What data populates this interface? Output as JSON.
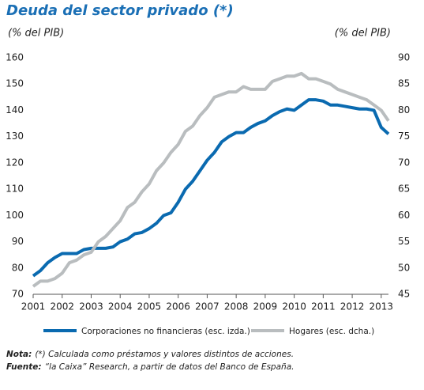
{
  "chart_data": {
    "type": "line",
    "title": "Deuda del sector privado (*)",
    "y_label": "(% del PIB)",
    "y2_label": "(% del PIB)",
    "x": [
      2001,
      2001.25,
      2001.5,
      2001.75,
      2002,
      2002.25,
      2002.5,
      2002.75,
      2003,
      2003.25,
      2003.5,
      2003.75,
      2004,
      2004.25,
      2004.5,
      2004.75,
      2005,
      2005.25,
      2005.5,
      2005.75,
      2006,
      2006.25,
      2006.5,
      2006.75,
      2007,
      2007.25,
      2007.5,
      2007.75,
      2008,
      2008.25,
      2008.5,
      2008.75,
      2009,
      2009.25,
      2009.5,
      2009.75,
      2010,
      2010.25,
      2010.5,
      2010.75,
      2011,
      2011.25,
      2011.5,
      2011.75,
      2012,
      2012.25,
      2012.5,
      2012.75,
      2013,
      2013.25
    ],
    "series": [
      {
        "name": "Corporaciones no financieras (esc. izda.)",
        "color": "#0a6ab0",
        "axis": "y",
        "values": [
          77,
          79,
          82,
          84,
          85.5,
          85.5,
          85.5,
          87,
          87.5,
          87.5,
          87.5,
          88,
          90,
          91,
          93,
          93.5,
          95,
          97,
          100,
          101,
          105,
          110,
          113,
          117,
          121,
          124,
          128,
          130,
          131.5,
          131.5,
          133.5,
          135,
          136,
          138,
          139.5,
          140.5,
          140,
          142,
          144,
          144,
          143.5,
          142,
          142,
          141.5,
          141,
          140.5,
          140.5,
          140,
          133.5,
          131
        ]
      },
      {
        "name": "Hogares (esc. dcha.)",
        "color": "#b9bdbf",
        "axis": "y2",
        "values": [
          46.5,
          47.5,
          47.5,
          48,
          49,
          51,
          51.5,
          52.5,
          53,
          55,
          56,
          57.5,
          59,
          61.5,
          62.5,
          64.5,
          66,
          68.5,
          70,
          72,
          73.5,
          76,
          77,
          79,
          80.5,
          82.5,
          83,
          83.5,
          83.5,
          84.5,
          84,
          84,
          84,
          85.5,
          86,
          86.5,
          86.5,
          87,
          86,
          86,
          85.5,
          85,
          84,
          83.5,
          83,
          82.5,
          82,
          81,
          80,
          78
        ]
      }
    ],
    "xlim": [
      2001,
      2013.25
    ],
    "xticks": [
      2001,
      2002,
      2003,
      2004,
      2005,
      2006,
      2007,
      2008,
      2009,
      2010,
      2011,
      2012,
      2013
    ],
    "ylim": [
      70,
      160
    ],
    "yticks": [
      70,
      80,
      90,
      100,
      110,
      120,
      130,
      140,
      150,
      160
    ],
    "y2lim": [
      45,
      90
    ],
    "y2ticks": [
      45,
      50,
      55,
      60,
      65,
      70,
      75,
      80,
      85,
      90
    ],
    "grid": false,
    "notes": [
      {
        "label": "Nota:",
        "text": "(*) Calculada como préstamos y valores distintos de acciones."
      },
      {
        "label": "Fuente:",
        "text": "“la Caixa” Research, a partir de datos del Banco de España."
      }
    ]
  }
}
